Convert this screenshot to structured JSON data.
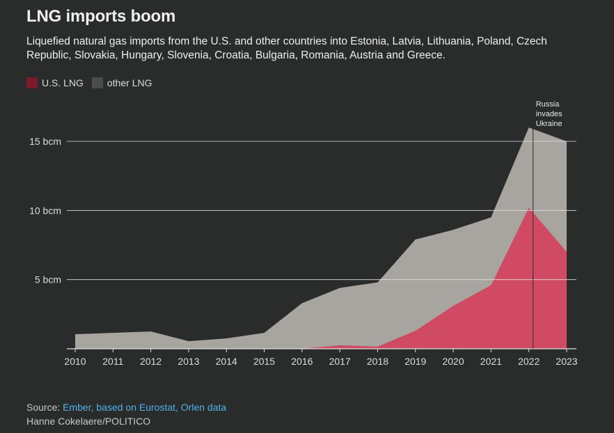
{
  "title": "LNG imports boom",
  "subtitle": "Liquefied natural gas imports from the U.S. and other countries into Estonia, Latvia, Lithuania, Poland, Czech Republic, Slovakia, Hungary, Slovenia, Croatia, Bulgaria, Romania, Austria and Greece.",
  "legend": [
    {
      "label": "U.S. LNG",
      "color": "#7a1a2a"
    },
    {
      "label": "other LNG",
      "color": "#4a4b4d"
    }
  ],
  "colors": {
    "us_area": "#d04a63",
    "total_area": "#a8a49f",
    "gridline": "#e0e0e0",
    "background": "#2a2b2b"
  },
  "chart_data": {
    "type": "area",
    "stacked": true,
    "x": [
      "2010",
      "2011",
      "2012",
      "2013",
      "2014",
      "2015",
      "2016",
      "2017",
      "2018",
      "2019",
      "2020",
      "2021",
      "2022",
      "2023"
    ],
    "series": [
      {
        "name": "U.S. LNG",
        "values": [
          0,
          0,
          0,
          0,
          0,
          0,
          0,
          0.25,
          0.15,
          1.3,
          3.1,
          4.6,
          10.2,
          7.0
        ]
      },
      {
        "name": "other LNG",
        "values": [
          1.05,
          1.15,
          1.25,
          0.55,
          0.75,
          1.15,
          3.3,
          4.15,
          4.65,
          6.6,
          5.5,
          4.9,
          5.8,
          8.0
        ]
      }
    ],
    "ylim": [
      0,
      16
    ],
    "yticks": [
      5,
      10,
      15
    ],
    "ytick_labels": [
      "5 bcm",
      "10 bcm",
      "15 bcm"
    ],
    "grid": true,
    "annotation": {
      "x": "2022",
      "lines": [
        "Russia",
        "invades",
        "Ukraine"
      ]
    }
  },
  "footer": {
    "source_prefix": "Source: ",
    "source_link": "Ember, based on Eurostat, Orlen data",
    "credit": "Hanne Cokelaere/POLITICO"
  }
}
